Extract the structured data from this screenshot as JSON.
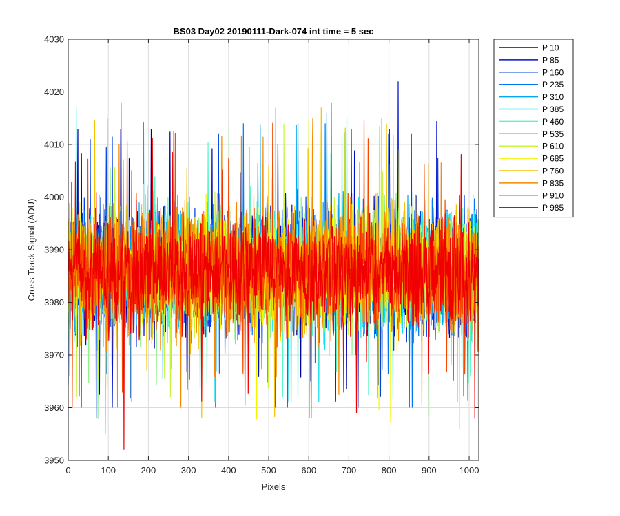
{
  "chart_data": {
    "type": "line",
    "title": "BS03 Day02 20190111-Dark-074 int time = 5 sec",
    "xlabel": "Pixels",
    "ylabel": "Cross Track Signal (ADU)",
    "xlim": [
      0,
      1024
    ],
    "ylim": [
      3950,
      4030
    ],
    "xticks": [
      0,
      100,
      200,
      300,
      400,
      500,
      600,
      700,
      800,
      900,
      1000
    ],
    "yticks": [
      3950,
      3960,
      3970,
      3980,
      3990,
      4000,
      4010,
      4020,
      4030
    ],
    "grid": true,
    "legend_position": "outside-top-right",
    "series": [
      {
        "name": "P 10",
        "color": "#0000a3",
        "mean": 3986,
        "noise": 8.5,
        "min": 3960,
        "max": 4013
      },
      {
        "name": "P 85",
        "color": "#0011cc",
        "mean": 3986,
        "noise": 8.5,
        "min": 3960,
        "max": 4022
      },
      {
        "name": "P 160",
        "color": "#0040e6",
        "mean": 3986,
        "noise": 8.5,
        "min": 3958,
        "max": 4012
      },
      {
        "name": "P 235",
        "color": "#0078f2",
        "mean": 3986,
        "noise": 8.5,
        "min": 3960,
        "max": 4014
      },
      {
        "name": "P 310",
        "color": "#00a8f5",
        "mean": 3986,
        "noise": 8.5,
        "min": 3960,
        "max": 4016
      },
      {
        "name": "P 385",
        "color": "#12e0f0",
        "mean": 3986,
        "noise": 8.5,
        "min": 3961,
        "max": 4017
      },
      {
        "name": "P 460",
        "color": "#5af5c5",
        "mean": 3986,
        "noise": 8.5,
        "min": 3962,
        "max": 4015
      },
      {
        "name": "P 535",
        "color": "#90f08a",
        "mean": 3986,
        "noise": 8.5,
        "min": 3955,
        "max": 4017
      },
      {
        "name": "P 610",
        "color": "#c8f53c",
        "mean": 3986,
        "noise": 8.5,
        "min": 3962,
        "max": 4015
      },
      {
        "name": "P 685",
        "color": "#f5f500",
        "mean": 3986,
        "noise": 8.5,
        "min": 3956,
        "max": 4012
      },
      {
        "name": "P 760",
        "color": "#f5c200",
        "mean": 3986,
        "noise": 8.5,
        "min": 3958,
        "max": 4017
      },
      {
        "name": "P 835",
        "color": "#f58a00",
        "mean": 3986,
        "noise": 8.5,
        "min": 3960,
        "max": 4015
      },
      {
        "name": "P 910",
        "color": "#f54a00",
        "mean": 3986,
        "noise": 8.5,
        "min": 3960,
        "max": 4018
      },
      {
        "name": "P 985",
        "color": "#f00000",
        "mean": 3986,
        "noise": 8.5,
        "min": 3952,
        "max": 4018
      }
    ]
  }
}
